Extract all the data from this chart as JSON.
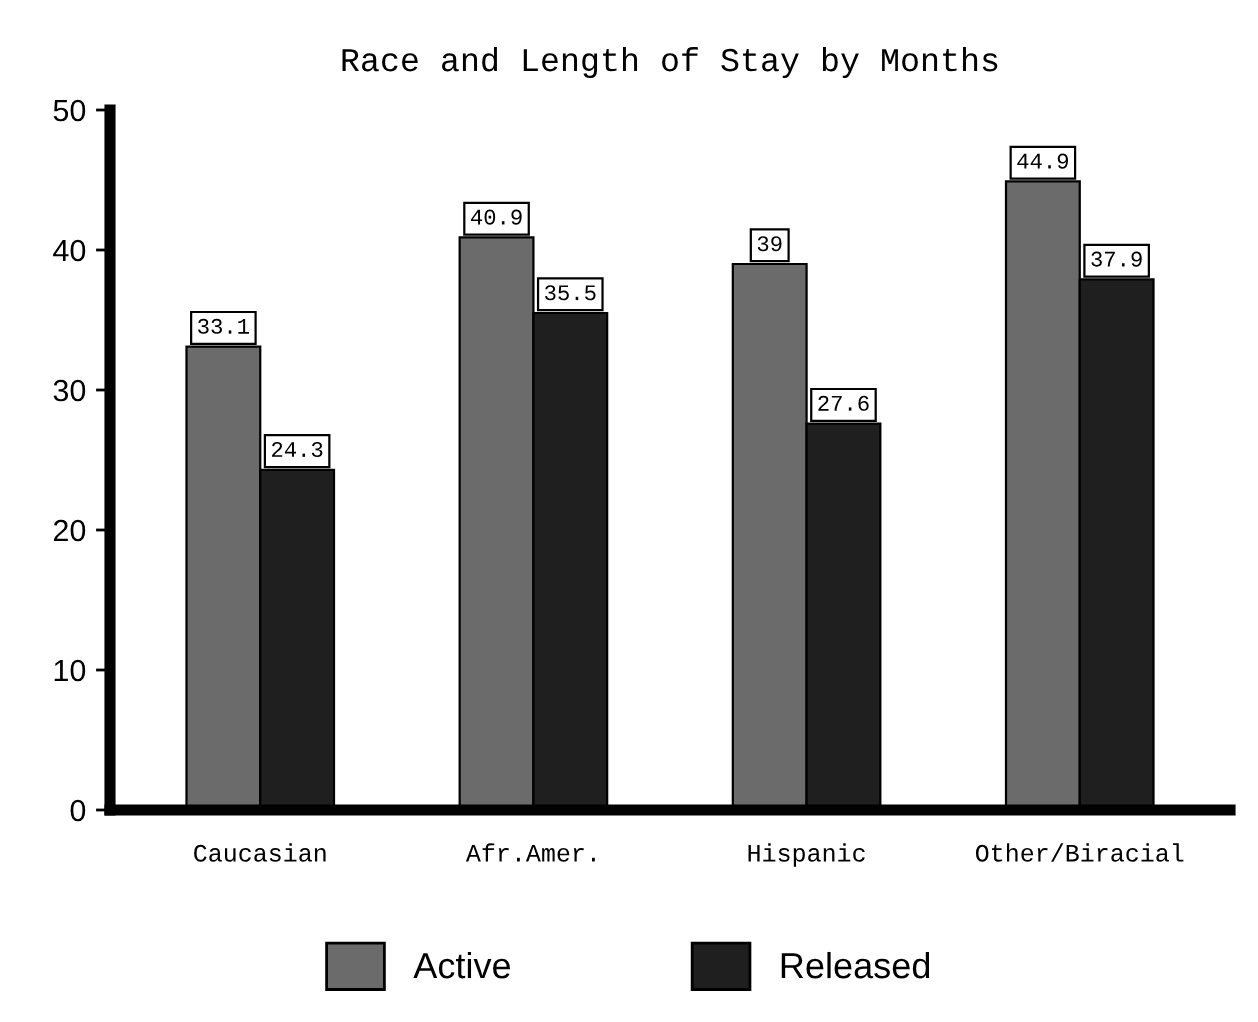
{
  "chart_data": {
    "type": "bar",
    "title": "Race and Length of Stay by Months",
    "categories": [
      "Caucasian",
      "Afr.Amer.",
      "Hispanic",
      "Other/Biracial"
    ],
    "series": [
      {
        "name": "Active",
        "color": "#6b6b6b",
        "values": [
          33.1,
          40.9,
          39,
          44.9
        ]
      },
      {
        "name": "Released",
        "color": "#1f1f1f",
        "values": [
          24.3,
          35.5,
          27.6,
          37.9
        ]
      }
    ],
    "ylim": [
      0,
      50
    ],
    "yticks": [
      0,
      10,
      20,
      30,
      40,
      50
    ],
    "grid": false,
    "legend": "bottom",
    "data_labels": true
  }
}
